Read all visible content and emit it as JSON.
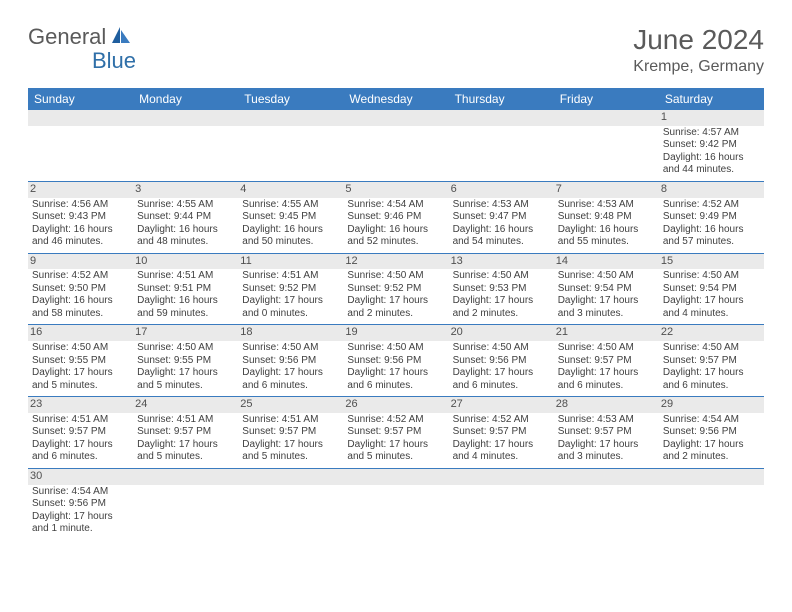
{
  "logo": {
    "general": "General",
    "blue": "Blue"
  },
  "title": "June 2024",
  "location": "Krempe, Germany",
  "colors": {
    "header_bg": "#3a7bbf",
    "header_text": "#ffffff",
    "daynum_bg": "#eaeaea",
    "border": "#3a7bbf",
    "text": "#404040",
    "title_text": "#5a5a5a",
    "logo_gray": "#5a5a5a",
    "logo_blue": "#2f6fa8"
  },
  "day_names": [
    "Sunday",
    "Monday",
    "Tuesday",
    "Wednesday",
    "Thursday",
    "Friday",
    "Saturday"
  ],
  "weeks": [
    [
      null,
      null,
      null,
      null,
      null,
      null,
      {
        "n": "1",
        "sr": "Sunrise: 4:57 AM",
        "ss": "Sunset: 9:42 PM",
        "dl": "Daylight: 16 hours and 44 minutes."
      }
    ],
    [
      {
        "n": "2",
        "sr": "Sunrise: 4:56 AM",
        "ss": "Sunset: 9:43 PM",
        "dl": "Daylight: 16 hours and 46 minutes."
      },
      {
        "n": "3",
        "sr": "Sunrise: 4:55 AM",
        "ss": "Sunset: 9:44 PM",
        "dl": "Daylight: 16 hours and 48 minutes."
      },
      {
        "n": "4",
        "sr": "Sunrise: 4:55 AM",
        "ss": "Sunset: 9:45 PM",
        "dl": "Daylight: 16 hours and 50 minutes."
      },
      {
        "n": "5",
        "sr": "Sunrise: 4:54 AM",
        "ss": "Sunset: 9:46 PM",
        "dl": "Daylight: 16 hours and 52 minutes."
      },
      {
        "n": "6",
        "sr": "Sunrise: 4:53 AM",
        "ss": "Sunset: 9:47 PM",
        "dl": "Daylight: 16 hours and 54 minutes."
      },
      {
        "n": "7",
        "sr": "Sunrise: 4:53 AM",
        "ss": "Sunset: 9:48 PM",
        "dl": "Daylight: 16 hours and 55 minutes."
      },
      {
        "n": "8",
        "sr": "Sunrise: 4:52 AM",
        "ss": "Sunset: 9:49 PM",
        "dl": "Daylight: 16 hours and 57 minutes."
      }
    ],
    [
      {
        "n": "9",
        "sr": "Sunrise: 4:52 AM",
        "ss": "Sunset: 9:50 PM",
        "dl": "Daylight: 16 hours and 58 minutes."
      },
      {
        "n": "10",
        "sr": "Sunrise: 4:51 AM",
        "ss": "Sunset: 9:51 PM",
        "dl": "Daylight: 16 hours and 59 minutes."
      },
      {
        "n": "11",
        "sr": "Sunrise: 4:51 AM",
        "ss": "Sunset: 9:52 PM",
        "dl": "Daylight: 17 hours and 0 minutes."
      },
      {
        "n": "12",
        "sr": "Sunrise: 4:50 AM",
        "ss": "Sunset: 9:52 PM",
        "dl": "Daylight: 17 hours and 2 minutes."
      },
      {
        "n": "13",
        "sr": "Sunrise: 4:50 AM",
        "ss": "Sunset: 9:53 PM",
        "dl": "Daylight: 17 hours and 2 minutes."
      },
      {
        "n": "14",
        "sr": "Sunrise: 4:50 AM",
        "ss": "Sunset: 9:54 PM",
        "dl": "Daylight: 17 hours and 3 minutes."
      },
      {
        "n": "15",
        "sr": "Sunrise: 4:50 AM",
        "ss": "Sunset: 9:54 PM",
        "dl": "Daylight: 17 hours and 4 minutes."
      }
    ],
    [
      {
        "n": "16",
        "sr": "Sunrise: 4:50 AM",
        "ss": "Sunset: 9:55 PM",
        "dl": "Daylight: 17 hours and 5 minutes."
      },
      {
        "n": "17",
        "sr": "Sunrise: 4:50 AM",
        "ss": "Sunset: 9:55 PM",
        "dl": "Daylight: 17 hours and 5 minutes."
      },
      {
        "n": "18",
        "sr": "Sunrise: 4:50 AM",
        "ss": "Sunset: 9:56 PM",
        "dl": "Daylight: 17 hours and 6 minutes."
      },
      {
        "n": "19",
        "sr": "Sunrise: 4:50 AM",
        "ss": "Sunset: 9:56 PM",
        "dl": "Daylight: 17 hours and 6 minutes."
      },
      {
        "n": "20",
        "sr": "Sunrise: 4:50 AM",
        "ss": "Sunset: 9:56 PM",
        "dl": "Daylight: 17 hours and 6 minutes."
      },
      {
        "n": "21",
        "sr": "Sunrise: 4:50 AM",
        "ss": "Sunset: 9:57 PM",
        "dl": "Daylight: 17 hours and 6 minutes."
      },
      {
        "n": "22",
        "sr": "Sunrise: 4:50 AM",
        "ss": "Sunset: 9:57 PM",
        "dl": "Daylight: 17 hours and 6 minutes."
      }
    ],
    [
      {
        "n": "23",
        "sr": "Sunrise: 4:51 AM",
        "ss": "Sunset: 9:57 PM",
        "dl": "Daylight: 17 hours and 6 minutes."
      },
      {
        "n": "24",
        "sr": "Sunrise: 4:51 AM",
        "ss": "Sunset: 9:57 PM",
        "dl": "Daylight: 17 hours and 5 minutes."
      },
      {
        "n": "25",
        "sr": "Sunrise: 4:51 AM",
        "ss": "Sunset: 9:57 PM",
        "dl": "Daylight: 17 hours and 5 minutes."
      },
      {
        "n": "26",
        "sr": "Sunrise: 4:52 AM",
        "ss": "Sunset: 9:57 PM",
        "dl": "Daylight: 17 hours and 5 minutes."
      },
      {
        "n": "27",
        "sr": "Sunrise: 4:52 AM",
        "ss": "Sunset: 9:57 PM",
        "dl": "Daylight: 17 hours and 4 minutes."
      },
      {
        "n": "28",
        "sr": "Sunrise: 4:53 AM",
        "ss": "Sunset: 9:57 PM",
        "dl": "Daylight: 17 hours and 3 minutes."
      },
      {
        "n": "29",
        "sr": "Sunrise: 4:54 AM",
        "ss": "Sunset: 9:56 PM",
        "dl": "Daylight: 17 hours and 2 minutes."
      }
    ],
    [
      {
        "n": "30",
        "sr": "Sunrise: 4:54 AM",
        "ss": "Sunset: 9:56 PM",
        "dl": "Daylight: 17 hours and 1 minute."
      },
      null,
      null,
      null,
      null,
      null,
      null
    ]
  ]
}
